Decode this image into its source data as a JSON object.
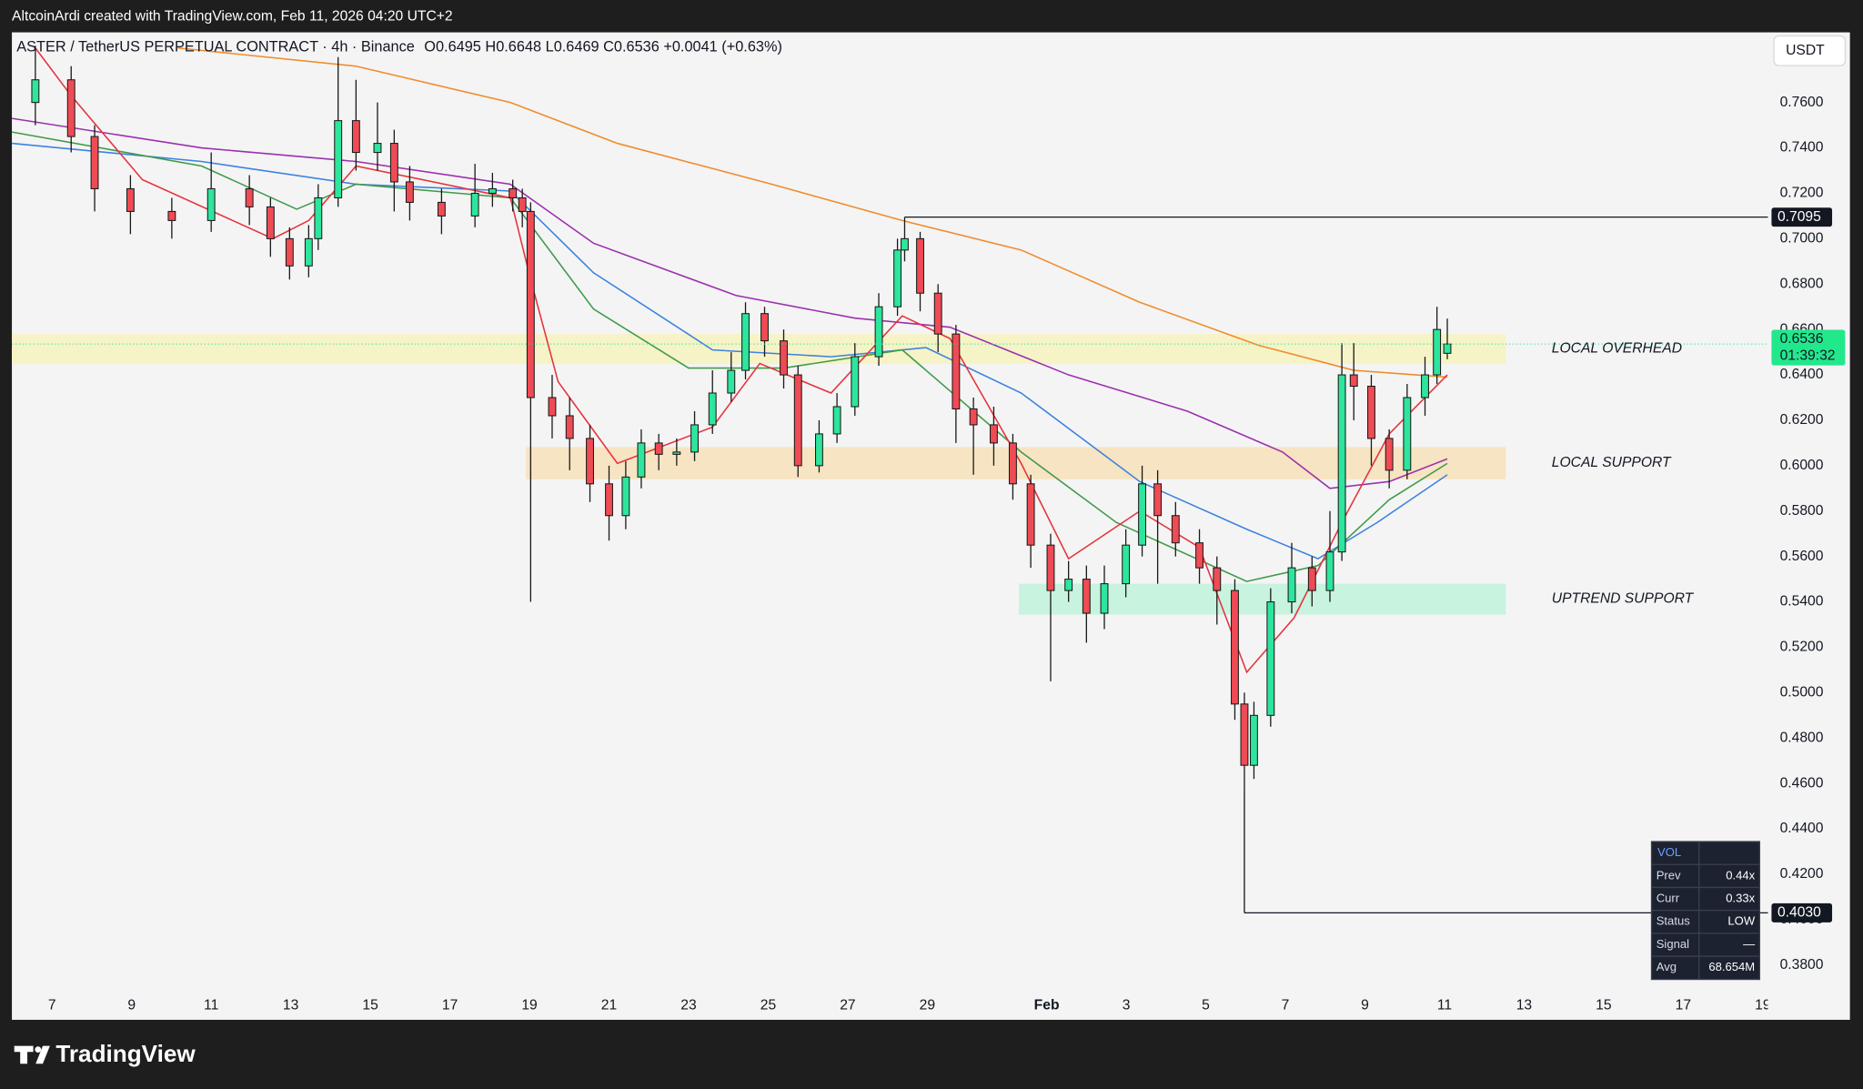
{
  "header": {
    "attribution": "AltcoinArdi created with TradingView.com, Feb 11, 2026 04:20 UTC+2"
  },
  "chart_data": {
    "type": "candlestick",
    "title": "ASTER / TetherUS PERPETUAL CONTRACT · 4h · Binance",
    "ohlc_legend": "O0.6495 H0.6648 L0.6469 C0.6536 +0.0041 (+0.63%)",
    "y_unit": "USDT",
    "up_color": "#2ee59d",
    "down_color": "#ef4b55",
    "x": [
      -0.42,
      0.48,
      1.07,
      1.97,
      3.01,
      4.0,
      4.96,
      5.49,
      5.97,
      6.45,
      6.69,
      7.19,
      7.64,
      8.18,
      8.6,
      8.99,
      9.79,
      10.63,
      11.07,
      11.58,
      11.82,
      12.03,
      12.57,
      13.01,
      13.52,
      14.0,
      14.42,
      14.81,
      15.25,
      15.7,
      16.15,
      16.6,
      17.07,
      17.43,
      17.91,
      18.39,
      18.75,
      19.28,
      19.73,
      20.18,
      20.78,
      21.25,
      21.43,
      21.82,
      22.27,
      22.72,
      23.16,
      23.67,
      24.15,
      24.6,
      25.1,
      25.55,
      26.0,
      26.45,
      26.99,
      27.4,
      27.79,
      28.24,
      28.84,
      29.28,
      29.73,
      29.97,
      30.21,
      30.63,
      31.16,
      31.67,
      32.12,
      32.42,
      32.72,
      33.16,
      33.61,
      34.06,
      34.51,
      34.81,
      35.07
    ],
    "open": [
      0.76,
      0.77,
      0.745,
      0.722,
      0.712,
      0.708,
      0.722,
      0.714,
      0.7,
      0.688,
      0.7,
      0.718,
      0.752,
      0.738,
      0.742,
      0.725,
      0.716,
      0.71,
      0.72,
      0.722,
      0.718,
      0.712,
      0.63,
      0.622,
      0.612,
      0.592,
      0.578,
      0.595,
      0.61,
      0.605,
      0.606,
      0.618,
      0.632,
      0.642,
      0.667,
      0.655,
      0.64,
      0.6,
      0.614,
      0.626,
      0.648,
      0.67,
      0.695,
      0.7,
      0.676,
      0.658,
      0.625,
      0.618,
      0.61,
      0.592,
      0.565,
      0.545,
      0.55,
      0.535,
      0.548,
      0.565,
      0.592,
      0.578,
      0.566,
      0.555,
      0.545,
      0.495,
      0.468,
      0.49,
      0.54,
      0.555,
      0.545,
      0.562,
      0.64,
      0.635,
      0.612,
      0.598,
      0.63,
      0.64,
      0.6495
    ],
    "high": [
      0.785,
      0.776,
      0.75,
      0.728,
      0.718,
      0.738,
      0.728,
      0.718,
      0.705,
      0.706,
      0.724,
      0.78,
      0.77,
      0.76,
      0.748,
      0.732,
      0.722,
      0.733,
      0.729,
      0.726,
      0.722,
      0.716,
      0.64,
      0.63,
      0.618,
      0.6,
      0.602,
      0.616,
      0.614,
      0.612,
      0.624,
      0.642,
      0.65,
      0.672,
      0.67,
      0.66,
      0.644,
      0.62,
      0.632,
      0.654,
      0.676,
      0.7,
      0.7095,
      0.703,
      0.68,
      0.662,
      0.63,
      0.626,
      0.614,
      0.596,
      0.57,
      0.558,
      0.556,
      0.556,
      0.572,
      0.6,
      0.598,
      0.584,
      0.572,
      0.56,
      0.55,
      0.5,
      0.496,
      0.546,
      0.566,
      0.56,
      0.58,
      0.654,
      0.654,
      0.64,
      0.616,
      0.636,
      0.648,
      0.67,
      0.6648
    ],
    "low": [
      0.75,
      0.738,
      0.712,
      0.702,
      0.7,
      0.703,
      0.706,
      0.692,
      0.682,
      0.683,
      0.695,
      0.714,
      0.73,
      0.73,
      0.712,
      0.708,
      0.702,
      0.705,
      0.714,
      0.712,
      0.705,
      0.54,
      0.612,
      0.598,
      0.584,
      0.567,
      0.572,
      0.59,
      0.598,
      0.6,
      0.602,
      0.614,
      0.628,
      0.638,
      0.648,
      0.634,
      0.595,
      0.597,
      0.61,
      0.622,
      0.644,
      0.666,
      0.69,
      0.668,
      0.65,
      0.61,
      0.596,
      0.6,
      0.585,
      0.555,
      0.505,
      0.54,
      0.522,
      0.528,
      0.542,
      0.56,
      0.548,
      0.56,
      0.548,
      0.53,
      0.488,
      0.458,
      0.462,
      0.485,
      0.535,
      0.538,
      0.54,
      0.558,
      0.62,
      0.6,
      0.59,
      0.594,
      0.622,
      0.636,
      0.6469
    ],
    "close": [
      0.77,
      0.745,
      0.722,
      0.712,
      0.708,
      0.722,
      0.714,
      0.7,
      0.688,
      0.7,
      0.718,
      0.752,
      0.738,
      0.742,
      0.725,
      0.716,
      0.71,
      0.72,
      0.722,
      0.718,
      0.712,
      0.63,
      0.622,
      0.612,
      0.592,
      0.578,
      0.595,
      0.61,
      0.605,
      0.606,
      0.618,
      0.632,
      0.642,
      0.667,
      0.655,
      0.64,
      0.6,
      0.614,
      0.626,
      0.648,
      0.67,
      0.695,
      0.7,
      0.676,
      0.658,
      0.625,
      0.618,
      0.61,
      0.592,
      0.565,
      0.545,
      0.55,
      0.535,
      0.548,
      0.565,
      0.592,
      0.578,
      0.566,
      0.555,
      0.545,
      0.495,
      0.468,
      0.49,
      0.54,
      0.555,
      0.545,
      0.562,
      0.64,
      0.635,
      0.612,
      0.598,
      0.63,
      0.64,
      0.66,
      0.6536
    ],
    "moving_averages": [
      {
        "color": "#f08c2c",
        "x": [
          3.16,
          7.64,
          11.52,
          14.21,
          18.09,
          21.37,
          24.36,
          27.34,
          30.33,
          32.72,
          35.07
        ],
        "values": [
          0.784,
          0.776,
          0.76,
          0.742,
          0.724,
          0.708,
          0.695,
          0.672,
          0.653,
          0.642,
          0.639
        ]
      },
      {
        "color": "#9b2fae",
        "x": [
          -1.01,
          3.76,
          7.64,
          11.52,
          13.61,
          17.19,
          20.18,
          22.57,
          25.55,
          28.54,
          30.93,
          32.12,
          33.61,
          35.07
        ],
        "values": [
          0.753,
          0.74,
          0.734,
          0.724,
          0.698,
          0.675,
          0.665,
          0.661,
          0.64,
          0.624,
          0.606,
          0.59,
          0.593,
          0.603
        ]
      },
      {
        "color": "#3c82e0",
        "x": [
          -1.01,
          3.76,
          7.64,
          11.52,
          13.61,
          16.6,
          19.58,
          21.97,
          24.36,
          27.34,
          30.03,
          31.82,
          33.31,
          35.07
        ],
        "values": [
          0.742,
          0.734,
          0.724,
          0.721,
          0.685,
          0.651,
          0.648,
          0.652,
          0.632,
          0.593,
          0.572,
          0.559,
          0.575,
          0.596
        ]
      },
      {
        "color": "#3f9a4a",
        "x": [
          -1.01,
          3.76,
          6.15,
          7.64,
          11.52,
          13.61,
          16.0,
          18.39,
          21.37,
          24.36,
          26.75,
          30.03,
          31.82,
          33.61,
          35.07
        ],
        "values": [
          0.747,
          0.732,
          0.713,
          0.724,
          0.718,
          0.669,
          0.643,
          0.643,
          0.651,
          0.606,
          0.575,
          0.549,
          0.556,
          0.585,
          0.601
        ]
      },
      {
        "color": "#e5333d",
        "x": [
          -0.42,
          0.48,
          2.27,
          5.55,
          6.45,
          7.64,
          11.52,
          12.03,
          12.72,
          14.21,
          16.6,
          17.79,
          19.58,
          21.37,
          22.57,
          24.36,
          25.55,
          27.34,
          28.84,
          30.03,
          31.22,
          32.42,
          33.61,
          35.07
        ],
        "values": [
          0.784,
          0.763,
          0.726,
          0.7,
          0.708,
          0.732,
          0.718,
          0.682,
          0.637,
          0.601,
          0.617,
          0.645,
          0.632,
          0.666,
          0.656,
          0.601,
          0.559,
          0.58,
          0.564,
          0.509,
          0.533,
          0.575,
          0.614,
          0.64
        ]
      }
    ],
    "zones": [
      {
        "label": "LOCAL OVERHEAD",
        "color": "#f6f2c4",
        "x": [
          -1.01,
          36.54
        ],
        "y": [
          0.6448,
          0.658
        ]
      },
      {
        "label": "LOCAL SUPPORT",
        "color": "#f7e3bf",
        "x": [
          11.91,
          36.54
        ],
        "y": [
          0.594,
          0.6082
        ]
      },
      {
        "label": "UPTREND SUPPORT",
        "color": "#c5f2dc",
        "x": [
          24.3,
          36.54
        ],
        "y": [
          0.5344,
          0.548
        ]
      }
    ],
    "levels": [
      {
        "value": 0.7095,
        "label": "0.7095",
        "x": 21.43,
        "from": 0.7095
      },
      {
        "value": 0.403,
        "label": "0.4030",
        "x": 29.97,
        "from": 0.458
      }
    ],
    "last_price": {
      "value": 0.6536,
      "label": "0.6536",
      "timer": "01:39:32",
      "color": "#22e88c"
    },
    "xlim": [
      -1.01,
      43.13
    ],
    "ylim": [
      0.3564,
      0.7909
    ],
    "xticks": [
      {
        "value": 0,
        "label": "7"
      },
      {
        "value": 2,
        "label": "9"
      },
      {
        "value": 4,
        "label": "11"
      },
      {
        "value": 6,
        "label": "13"
      },
      {
        "value": 8,
        "label": "15"
      },
      {
        "value": 10,
        "label": "17"
      },
      {
        "value": 12,
        "label": "19"
      },
      {
        "value": 14,
        "label": "21"
      },
      {
        "value": 16,
        "label": "23"
      },
      {
        "value": 18,
        "label": "25"
      },
      {
        "value": 20,
        "label": "27"
      },
      {
        "value": 22,
        "label": "29"
      },
      {
        "value": 25,
        "label": "Feb"
      },
      {
        "value": 27,
        "label": "3"
      },
      {
        "value": 29,
        "label": "5"
      },
      {
        "value": 31,
        "label": "7"
      },
      {
        "value": 33,
        "label": "9"
      },
      {
        "value": 35,
        "label": "11"
      },
      {
        "value": 37,
        "label": "13"
      },
      {
        "value": 39,
        "label": "15"
      },
      {
        "value": 41,
        "label": "17"
      },
      {
        "value": 43,
        "label": "19"
      }
    ],
    "yticks": [
      {
        "value": 0.38,
        "label": "0.3800"
      },
      {
        "value": 0.4,
        "label": "0.4000"
      },
      {
        "value": 0.42,
        "label": "0.4200"
      },
      {
        "value": 0.44,
        "label": "0.4400"
      },
      {
        "value": 0.46,
        "label": "0.4600"
      },
      {
        "value": 0.48,
        "label": "0.4800"
      },
      {
        "value": 0.5,
        "label": "0.5000"
      },
      {
        "value": 0.52,
        "label": "0.5200"
      },
      {
        "value": 0.54,
        "label": "0.5400"
      },
      {
        "value": 0.56,
        "label": "0.5600"
      },
      {
        "value": 0.58,
        "label": "0.5800"
      },
      {
        "value": 0.6,
        "label": "0.6000"
      },
      {
        "value": 0.62,
        "label": "0.6200"
      },
      {
        "value": 0.64,
        "label": "0.6400"
      },
      {
        "value": 0.66,
        "label": "0.6600"
      },
      {
        "value": 0.68,
        "label": "0.6800"
      },
      {
        "value": 0.7,
        "label": "0.7000"
      },
      {
        "value": 0.72,
        "label": "0.7200"
      },
      {
        "value": 0.74,
        "label": "0.7400"
      },
      {
        "value": 0.76,
        "label": "0.7600"
      }
    ],
    "grid": false
  },
  "vol_table": {
    "title": "VOL",
    "rows": [
      [
        "Prev",
        "0.44x"
      ],
      [
        "Curr",
        "0.33x"
      ],
      [
        "Status",
        "LOW"
      ],
      [
        "Signal",
        "—"
      ],
      [
        "Avg",
        "68.654M"
      ]
    ]
  },
  "footer": {
    "logo": "TradingView"
  }
}
